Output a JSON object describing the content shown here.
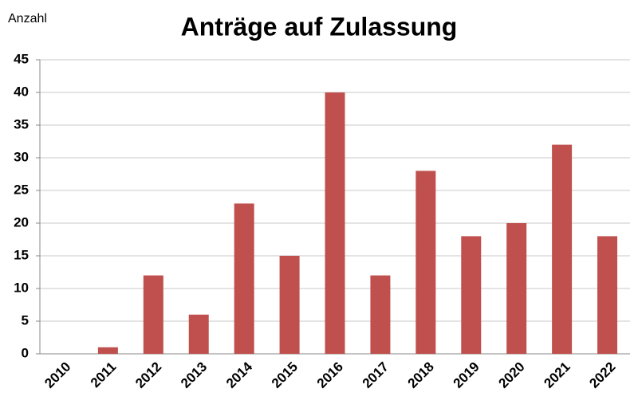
{
  "chart_data": {
    "type": "bar",
    "title": "Anträge auf Zulassung",
    "y_label": "Anzahl",
    "categories": [
      "2010",
      "2011",
      "2012",
      "2013",
      "2014",
      "2015",
      "2016",
      "2017",
      "2018",
      "2019",
      "2020",
      "2021",
      "2022"
    ],
    "values": [
      0,
      1,
      12,
      6,
      23,
      15,
      40,
      12,
      28,
      18,
      20,
      32,
      18
    ],
    "color": "#c0504d",
    "ylim": [
      0,
      45
    ],
    "yticks": [
      0,
      5,
      10,
      15,
      20,
      25,
      30,
      35,
      40,
      45
    ],
    "grid": true
  }
}
